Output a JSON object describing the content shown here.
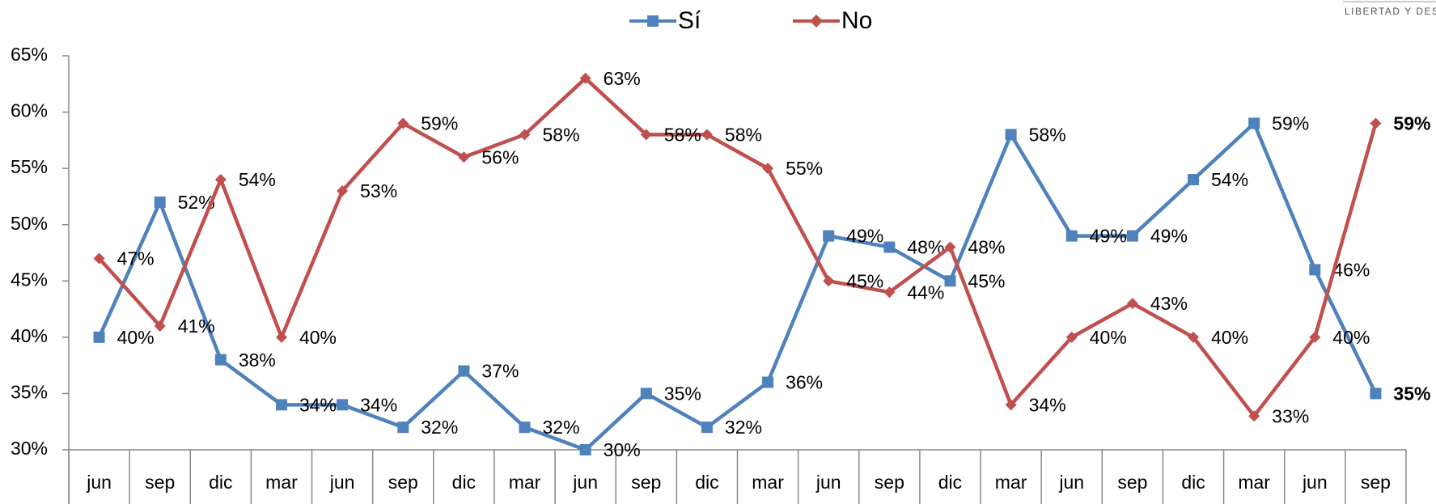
{
  "chart_data": {
    "type": "line",
    "corner_text": "LIBERTAD Y DES",
    "categories": [
      "jun",
      "sep",
      "dic",
      "mar",
      "jun",
      "sep",
      "dic",
      "mar",
      "jun",
      "sep",
      "dic",
      "mar",
      "jun",
      "sep",
      "dic",
      "mar",
      "jun",
      "sep",
      "dic",
      "mar",
      "jun",
      "sep"
    ],
    "series": [
      {
        "name": "Sí",
        "color": "#4f81bd",
        "marker": "square",
        "values": [
          40,
          52,
          38,
          34,
          34,
          32,
          37,
          32,
          30,
          35,
          32,
          36,
          49,
          48,
          45,
          58,
          49,
          49,
          54,
          59,
          46,
          35
        ],
        "value_labels": [
          "40%",
          "52%",
          "38%",
          "34%",
          "34%",
          "32%",
          "37%",
          "32%",
          "30%",
          "35%",
          "32%",
          "36%",
          "49%",
          "48%",
          "45%",
          "58%",
          "49%",
          "49%",
          "54%",
          "59%",
          "46%",
          "35%"
        ]
      },
      {
        "name": "No",
        "color": "#c0504d",
        "marker": "diamond",
        "values": [
          47,
          41,
          54,
          40,
          53,
          59,
          56,
          58,
          63,
          58,
          58,
          55,
          45,
          44,
          48,
          34,
          40,
          43,
          40,
          33,
          40,
          59
        ],
        "value_labels": [
          "47%",
          "41%",
          "54%",
          "40%",
          "53%",
          "59%",
          "56%",
          "58%",
          "63%",
          "58%",
          "58%",
          "55%",
          "45%",
          "44%",
          "48%",
          "34%",
          "40%",
          "43%",
          "40%",
          "33%",
          "40%",
          "59%"
        ]
      }
    ],
    "ylim": [
      30,
      65
    ],
    "yticks": [
      {
        "value": 30,
        "label": "30%"
      },
      {
        "value": 35,
        "label": "35%"
      },
      {
        "value": 40,
        "label": "40%"
      },
      {
        "value": 45,
        "label": "45%"
      },
      {
        "value": 50,
        "label": "50%"
      },
      {
        "value": 55,
        "label": "55%"
      },
      {
        "value": 60,
        "label": "60%"
      },
      {
        "value": 65,
        "label": "65%"
      }
    ],
    "legend": "top",
    "grid": false
  }
}
